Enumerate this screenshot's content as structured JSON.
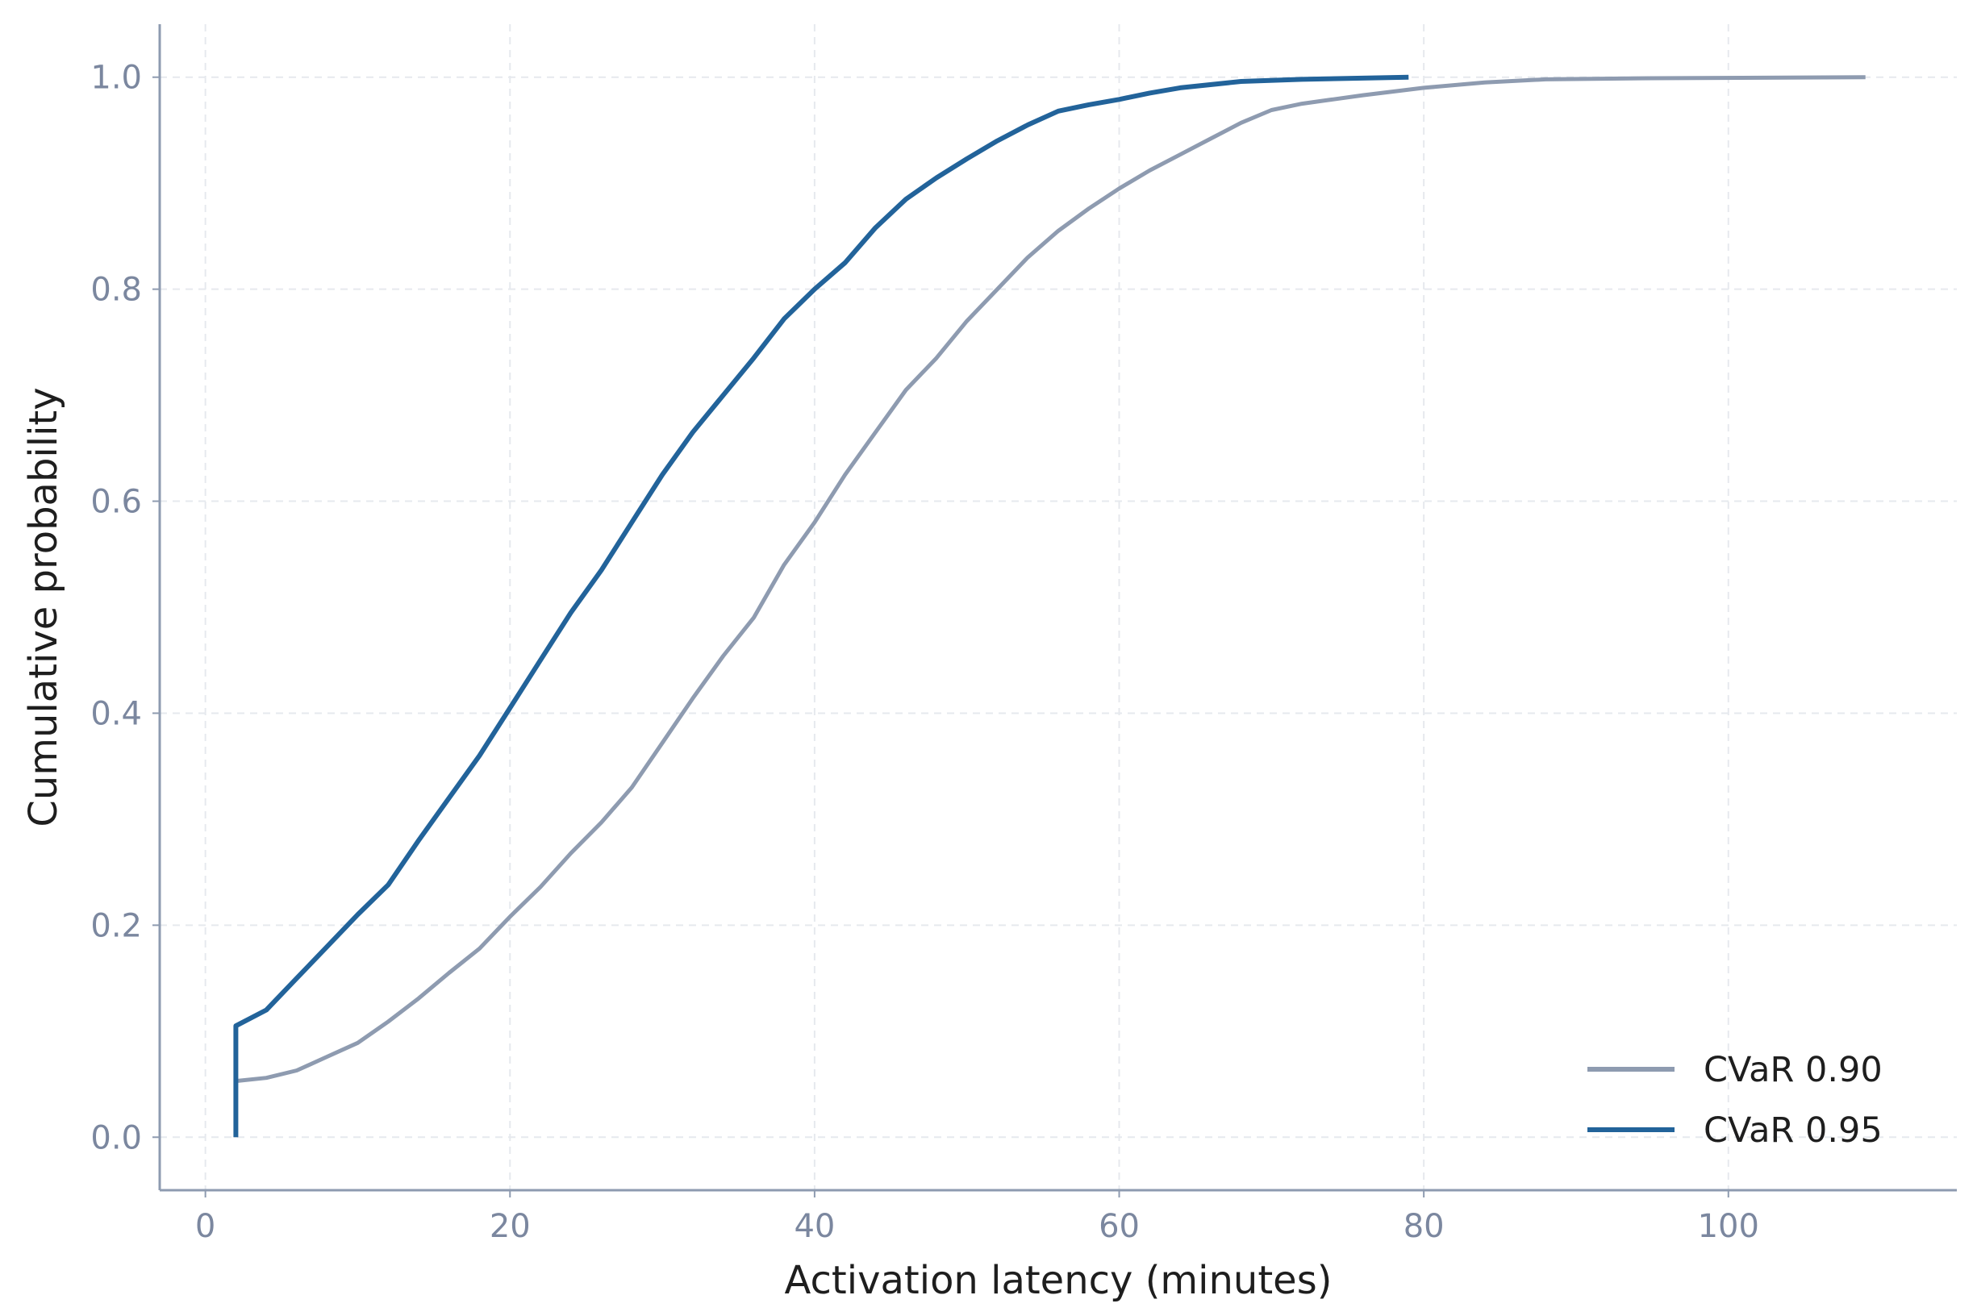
{
  "chart_data": {
    "type": "line",
    "title": "",
    "xlabel": "Activation latency (minutes)",
    "ylabel": "Cumulative probability",
    "xlim": [
      -3,
      115
    ],
    "ylim": [
      -0.05,
      1.05
    ],
    "xticks": [
      0,
      20,
      40,
      60,
      80,
      100
    ],
    "xtick_labels": [
      "0",
      "20",
      "40",
      "60",
      "80",
      "100"
    ],
    "yticks": [
      0.0,
      0.2,
      0.4,
      0.6,
      0.8,
      1.0
    ],
    "ytick_labels": [
      "0.0",
      "0.2",
      "0.4",
      "0.6",
      "0.8",
      "1.0"
    ],
    "grid": true,
    "legend_position": "bottom-right",
    "series": [
      {
        "name": "CVaR 0.90",
        "color": "#8e9bb0",
        "points": [
          [
            2,
            0.0
          ],
          [
            2,
            0.053
          ],
          [
            4,
            0.056
          ],
          [
            6,
            0.063
          ],
          [
            8,
            0.076
          ],
          [
            10,
            0.089
          ],
          [
            12,
            0.109
          ],
          [
            14,
            0.131
          ],
          [
            16,
            0.155
          ],
          [
            18,
            0.178
          ],
          [
            20,
            0.208
          ],
          [
            22,
            0.236
          ],
          [
            24,
            0.268
          ],
          [
            26,
            0.297
          ],
          [
            28,
            0.33
          ],
          [
            30,
            0.372
          ],
          [
            32,
            0.414
          ],
          [
            34,
            0.454
          ],
          [
            36,
            0.49
          ],
          [
            38,
            0.54
          ],
          [
            40,
            0.58
          ],
          [
            42,
            0.625
          ],
          [
            44,
            0.665
          ],
          [
            46,
            0.705
          ],
          [
            48,
            0.735
          ],
          [
            50,
            0.77
          ],
          [
            52,
            0.8
          ],
          [
            54,
            0.83
          ],
          [
            56,
            0.855
          ],
          [
            58,
            0.876
          ],
          [
            60,
            0.895
          ],
          [
            62,
            0.912
          ],
          [
            64,
            0.927
          ],
          [
            66,
            0.942
          ],
          [
            68,
            0.957
          ],
          [
            70,
            0.969
          ],
          [
            72,
            0.975
          ],
          [
            76,
            0.983
          ],
          [
            80,
            0.99
          ],
          [
            84,
            0.995
          ],
          [
            88,
            0.998
          ],
          [
            95,
            0.999
          ],
          [
            109,
            1.0
          ]
        ]
      },
      {
        "name": "CVaR 0.95",
        "color": "#22639a",
        "points": [
          [
            2,
            0.0
          ],
          [
            2,
            0.105
          ],
          [
            4,
            0.12
          ],
          [
            6,
            0.15
          ],
          [
            8,
            0.18
          ],
          [
            10,
            0.21
          ],
          [
            12,
            0.238
          ],
          [
            14,
            0.28
          ],
          [
            16,
            0.32
          ],
          [
            18,
            0.36
          ],
          [
            20,
            0.405
          ],
          [
            22,
            0.45
          ],
          [
            24,
            0.495
          ],
          [
            26,
            0.535
          ],
          [
            28,
            0.58
          ],
          [
            30,
            0.625
          ],
          [
            32,
            0.665
          ],
          [
            34,
            0.7
          ],
          [
            36,
            0.735
          ],
          [
            38,
            0.772
          ],
          [
            40,
            0.8
          ],
          [
            42,
            0.825
          ],
          [
            44,
            0.858
          ],
          [
            46,
            0.885
          ],
          [
            48,
            0.905
          ],
          [
            50,
            0.923
          ],
          [
            52,
            0.94
          ],
          [
            54,
            0.955
          ],
          [
            56,
            0.968
          ],
          [
            58,
            0.974
          ],
          [
            60,
            0.979
          ],
          [
            62,
            0.985
          ],
          [
            64,
            0.99
          ],
          [
            68,
            0.996
          ],
          [
            72,
            0.998
          ],
          [
            79,
            1.0
          ]
        ]
      }
    ]
  }
}
